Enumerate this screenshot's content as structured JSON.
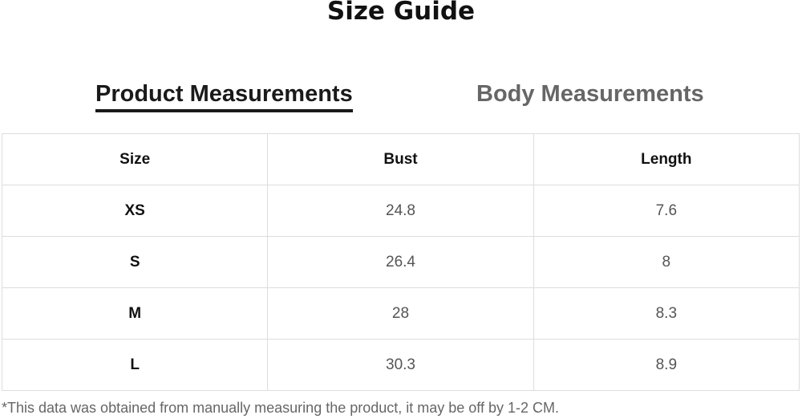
{
  "title": "Size Guide",
  "tabs": [
    {
      "label": "Product Measurements",
      "active": true
    },
    {
      "label": "Body Measurements",
      "active": false
    }
  ],
  "table": {
    "headers": [
      "Size",
      "Bust",
      "Length"
    ],
    "rows": [
      [
        "XS",
        "24.8",
        "7.6"
      ],
      [
        "S",
        "26.4",
        "8"
      ],
      [
        "M",
        "28",
        "8.3"
      ],
      [
        "L",
        "30.3",
        "8.9"
      ]
    ]
  },
  "note": "*This data was obtained from manually measuring the product, it may be off by 1-2 CM."
}
